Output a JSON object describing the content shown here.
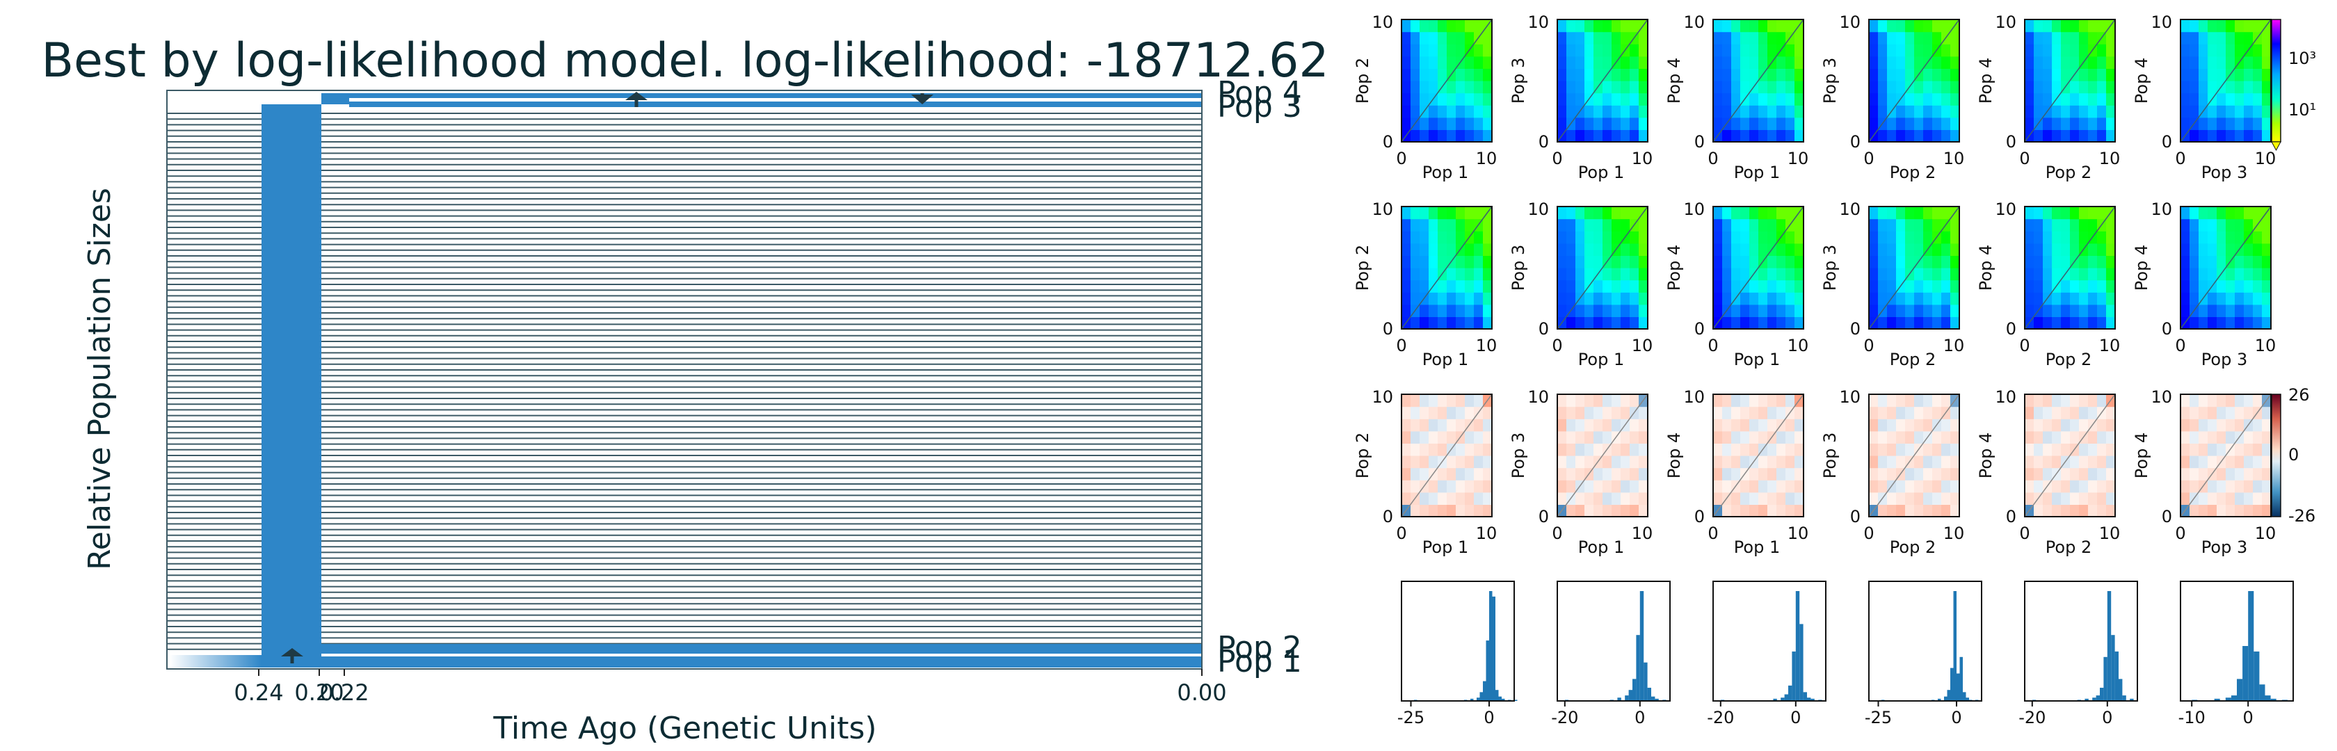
{
  "chart_data": [
    {
      "type": "diagram",
      "title": "Best by log-likelihood model. log-likelihood: -18712.62",
      "xlabel": "Time Ago (Genetic Units)",
      "ylabel": "Relative Population Sizes",
      "xticks": [
        "0.24",
        "0.20",
        "0.22",
        "0.00"
      ],
      "populations": [
        "Pop 1",
        "Pop 2",
        "Pop 3",
        "Pop 4"
      ],
      "colors": {
        "population": "#2e86c8",
        "lines": "#3c5a66"
      }
    },
    {
      "type": "heatmap",
      "row": "data spectrum",
      "panels": [
        {
          "xlabel": "Pop 1",
          "ylabel": "Pop 2"
        },
        {
          "xlabel": "Pop 1",
          "ylabel": "Pop 3"
        },
        {
          "xlabel": "Pop 1",
          "ylabel": "Pop 4"
        },
        {
          "xlabel": "Pop 2",
          "ylabel": "Pop 3"
        },
        {
          "xlabel": "Pop 2",
          "ylabel": "Pop 4"
        },
        {
          "xlabel": "Pop 3",
          "ylabel": "Pop 4"
        }
      ],
      "xrange": [
        0,
        10
      ],
      "yrange": [
        0,
        10
      ],
      "colorbar_ticks": [
        "10³",
        "10¹"
      ]
    },
    {
      "type": "heatmap",
      "row": "model spectrum",
      "panels": [
        {
          "xlabel": "Pop 1",
          "ylabel": "Pop 2"
        },
        {
          "xlabel": "Pop 1",
          "ylabel": "Pop 3"
        },
        {
          "xlabel": "Pop 1",
          "ylabel": "Pop 4"
        },
        {
          "xlabel": "Pop 2",
          "ylabel": "Pop 3"
        },
        {
          "xlabel": "Pop 2",
          "ylabel": "Pop 4"
        },
        {
          "xlabel": "Pop 3",
          "ylabel": "Pop 4"
        }
      ],
      "xrange": [
        0,
        10
      ],
      "yrange": [
        0,
        10
      ]
    },
    {
      "type": "heatmap",
      "row": "residuals",
      "panels": [
        {
          "xlabel": "Pop 1",
          "ylabel": "Pop 2"
        },
        {
          "xlabel": "Pop 1",
          "ylabel": "Pop 3"
        },
        {
          "xlabel": "Pop 1",
          "ylabel": "Pop 4"
        },
        {
          "xlabel": "Pop 2",
          "ylabel": "Pop 3"
        },
        {
          "xlabel": "Pop 2",
          "ylabel": "Pop 4"
        },
        {
          "xlabel": "Pop 3",
          "ylabel": "Pop 4"
        }
      ],
      "xrange": [
        0,
        10
      ],
      "yrange": [
        0,
        10
      ],
      "colorbar_ticks": [
        "26",
        "0",
        "-26"
      ]
    },
    {
      "type": "bar",
      "row": "residual histograms",
      "color": "#1f77b4",
      "panels": [
        {
          "xticks": [
            "-25",
            "0"
          ],
          "xlim": [
            -28,
            8
          ],
          "bins": [
            -24,
            -20,
            -16,
            -12,
            -8,
            -6,
            -4,
            -3,
            -2,
            -1,
            0,
            1,
            2,
            3,
            4,
            6,
            8
          ],
          "values": [
            1,
            0,
            0,
            0,
            1,
            2,
            3,
            8,
            18,
            55,
            100,
            95,
            10,
            4,
            2,
            1,
            1
          ]
        },
        {
          "xticks": [
            "-20",
            "0"
          ],
          "xlim": [
            -22,
            8
          ],
          "bins": [
            -20,
            -16,
            -12,
            -8,
            -6,
            -4,
            -3,
            -2,
            -1,
            0,
            1,
            2,
            3,
            4,
            6
          ],
          "values": [
            1,
            0,
            0,
            1,
            3,
            5,
            10,
            20,
            60,
            100,
            35,
            12,
            4,
            2,
            1
          ]
        },
        {
          "xticks": [
            "-20",
            "0"
          ],
          "xlim": [
            -22,
            8
          ],
          "bins": [
            -20,
            -16,
            -12,
            -8,
            -6,
            -4,
            -3,
            -2,
            -1,
            0,
            1,
            2,
            3,
            4,
            6
          ],
          "values": [
            1,
            0,
            0,
            0,
            2,
            3,
            6,
            14,
            45,
            100,
            70,
            8,
            3,
            2,
            1
          ]
        },
        {
          "xticks": [
            "-25",
            "0"
          ],
          "xlim": [
            -28,
            8
          ],
          "bins": [
            -24,
            -20,
            -16,
            -12,
            -8,
            -6,
            -4,
            -3,
            -2,
            -1,
            0,
            1,
            2,
            3,
            4,
            6
          ],
          "values": [
            1,
            0,
            0,
            0,
            1,
            2,
            4,
            10,
            30,
            100,
            25,
            40,
            8,
            3,
            1,
            1
          ]
        },
        {
          "xticks": [
            "-20",
            "0"
          ],
          "xlim": [
            -22,
            8
          ],
          "bins": [
            -20,
            -16,
            -12,
            -8,
            -6,
            -4,
            -3,
            -2,
            -1,
            0,
            1,
            2,
            3,
            4,
            6
          ],
          "values": [
            1,
            0,
            0,
            1,
            2,
            3,
            5,
            12,
            40,
            100,
            60,
            45,
            20,
            5,
            2
          ]
        },
        {
          "xticks": [
            "-10",
            "0"
          ],
          "xlim": [
            -12,
            8
          ],
          "bins": [
            -10,
            -8,
            -6,
            -4,
            -3,
            -2,
            -1,
            0,
            1,
            2,
            3,
            4,
            6
          ],
          "values": [
            1,
            0,
            2,
            3,
            5,
            20,
            50,
            100,
            45,
            15,
            5,
            2,
            1
          ]
        }
      ]
    }
  ]
}
